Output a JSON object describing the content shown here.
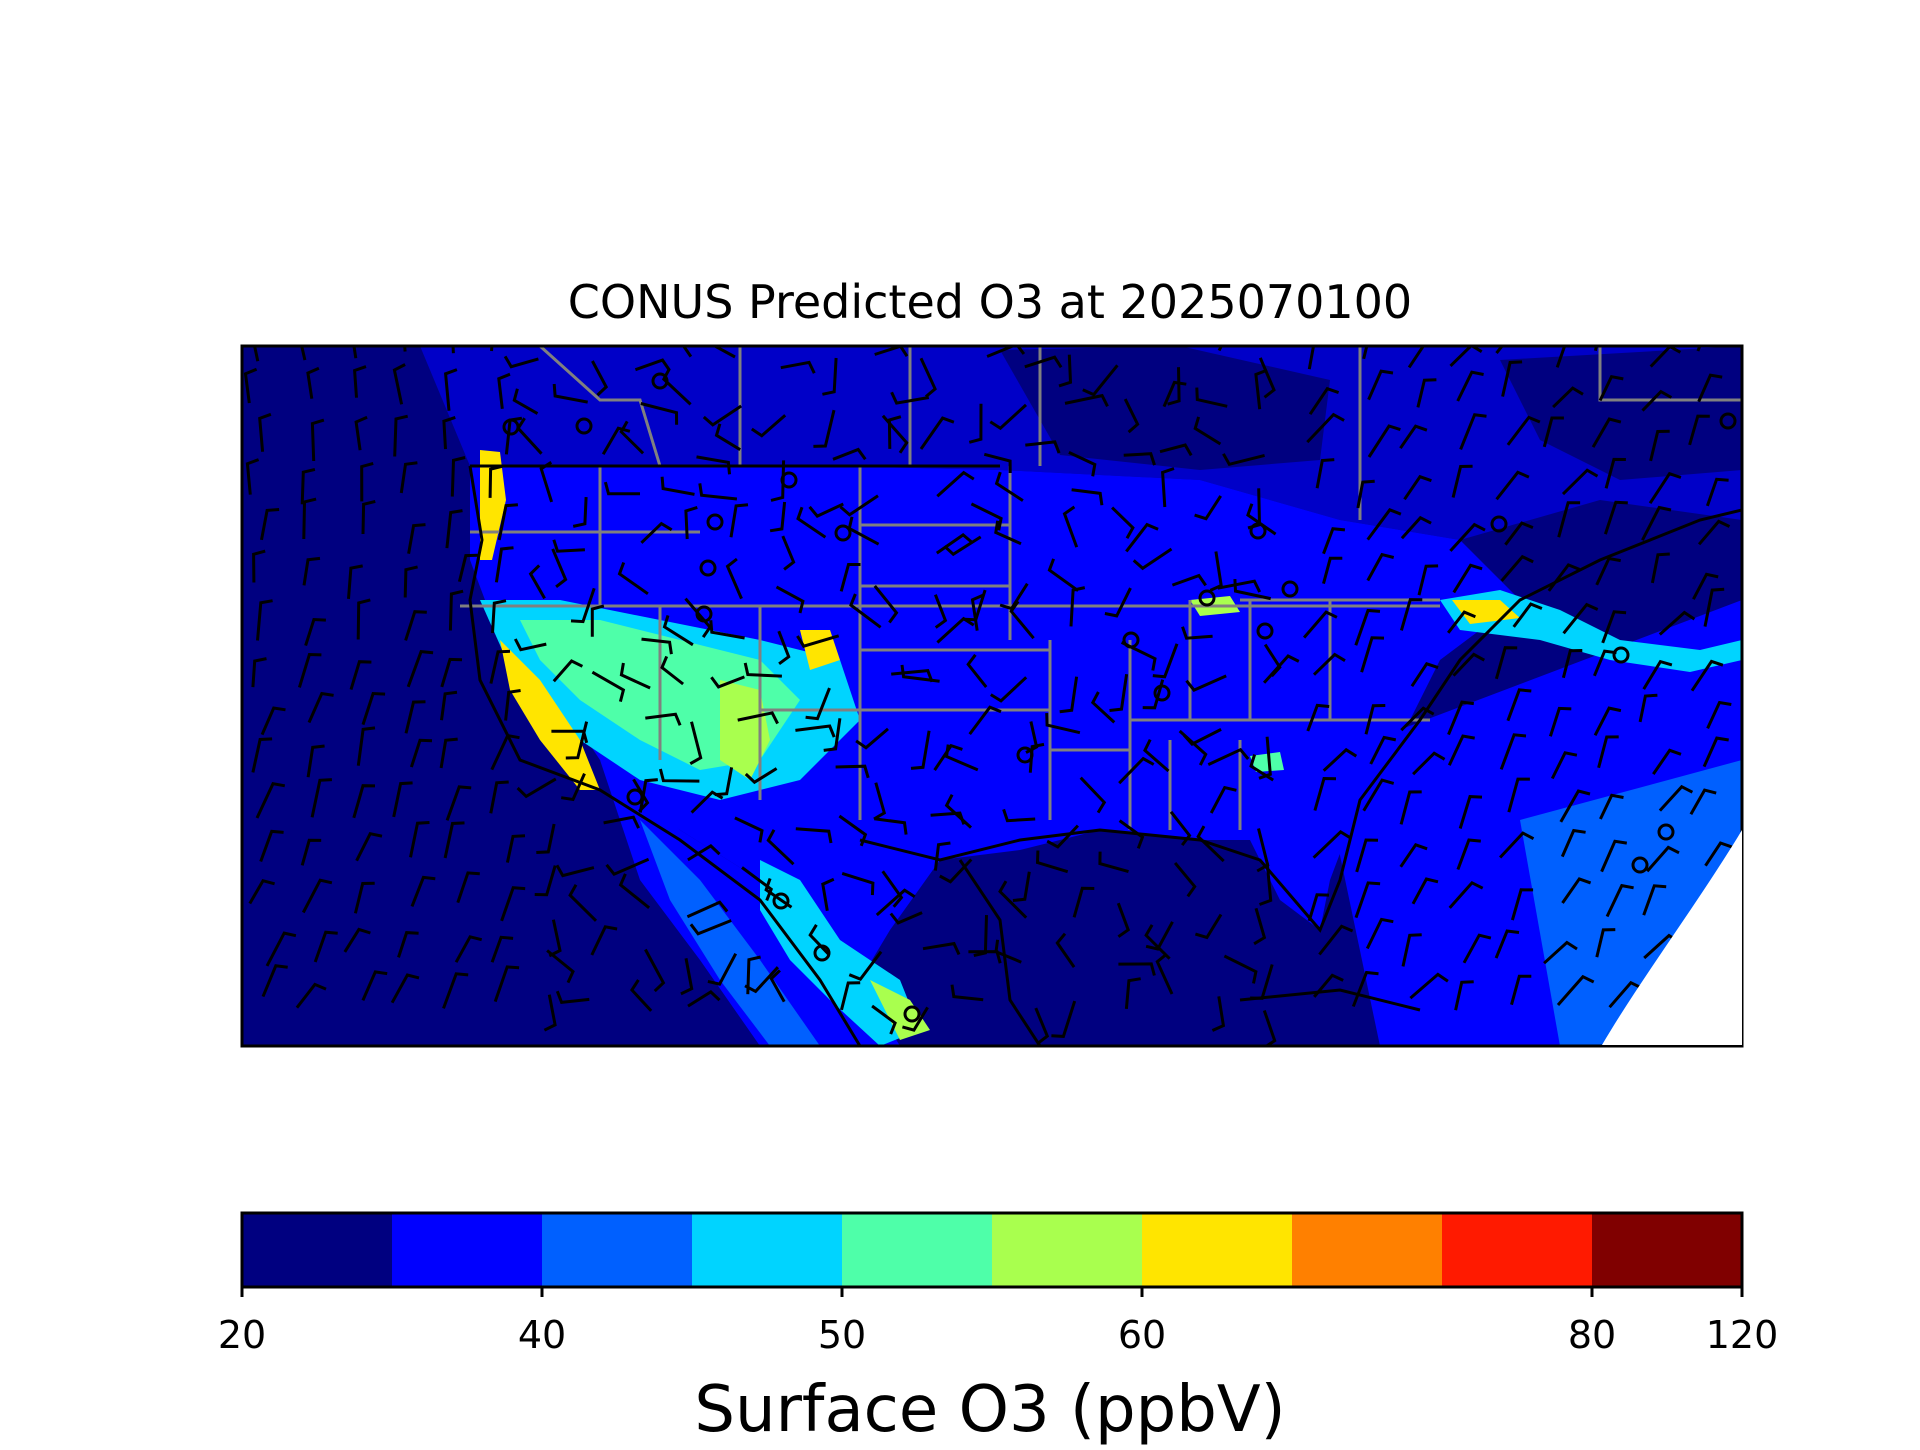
{
  "title": "CONUS Predicted O3 at 2025070100",
  "colorbar": {
    "label": "Surface O3 (ppbV)",
    "ticks": [
      "20",
      "40",
      "50",
      "60",
      "80",
      "120"
    ],
    "bins": [
      {
        "min": 20,
        "max": 30,
        "color": "#000080"
      },
      {
        "min": 30,
        "max": 40,
        "color": "#0000ff"
      },
      {
        "min": 40,
        "max": 45,
        "color": "#0060ff"
      },
      {
        "min": 45,
        "max": 50,
        "color": "#00d4ff"
      },
      {
        "min": 50,
        "max": 55,
        "color": "#4effa9"
      },
      {
        "min": 55,
        "max": 60,
        "color": "#a9ff4e"
      },
      {
        "min": 60,
        "max": 65,
        "color": "#ffe500"
      },
      {
        "min": 65,
        "max": 70,
        "color": "#ff8000"
      },
      {
        "min": 70,
        "max": 80,
        "color": "#ff1a00"
      },
      {
        "min": 80,
        "max": 120,
        "color": "#800000"
      }
    ]
  },
  "map": {
    "ocean_color": "#000080",
    "land_base_color": "#0000ff",
    "state_border_color": "#808080",
    "coastline_color": "#000000",
    "wind_barb_color": "#000000"
  }
}
